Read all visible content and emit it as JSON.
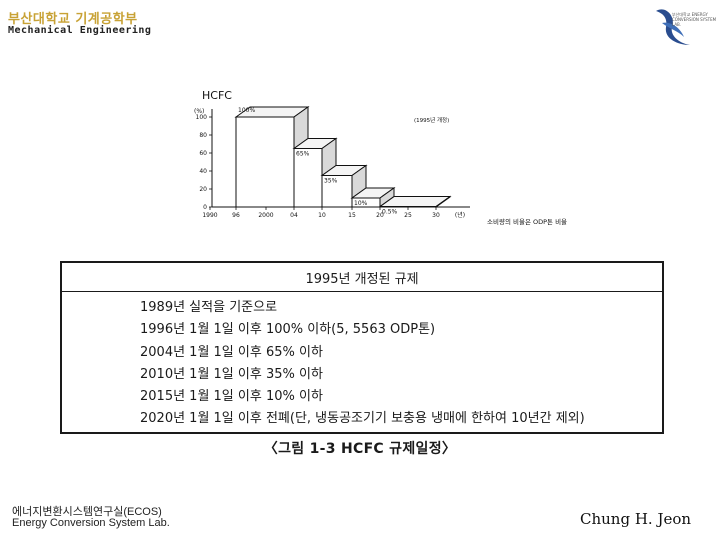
{
  "header": {
    "title_kr": "부산대학교 기계공학부",
    "title_en": "Mechanical Engineering"
  },
  "logo": {
    "icon": "university-logo-icon",
    "text": "부산대학교 ENERGY CONVERSION SYSTEM LAB."
  },
  "chart_data": {
    "type": "step-area",
    "title": "HCFC",
    "y_unit": "(%)",
    "y_ticks": [
      "100",
      "80",
      "60",
      "40",
      "20",
      "0"
    ],
    "x_ticks": [
      "1990",
      "96",
      "2000",
      "04",
      "10",
      "15",
      "20",
      "25",
      "30",
      "(년)"
    ],
    "ylim": [
      0,
      120
    ],
    "steps": [
      {
        "from": 1996,
        "to": 2004,
        "value": 100,
        "label": "100%"
      },
      {
        "from": 2004,
        "to": 2010,
        "value": 65,
        "label": "65%"
      },
      {
        "from": 2010,
        "to": 2015,
        "value": 35,
        "label": "35%"
      },
      {
        "from": 2015,
        "to": 2020,
        "value": 10,
        "label": "10%"
      },
      {
        "from": 2020,
        "to": 2030,
        "value": 0.5,
        "label": "0.5%"
      }
    ],
    "annotation_top": "(1995년 개정)",
    "annotation_bottom": "소비량의 비율은 ODP톤 비율"
  },
  "table": {
    "header": "1995년 개정된 규제",
    "rows": [
      "1989년 실적을 기준으로",
      "1996년 1월 1일 이후 100% 이하(5, 5563 ODP톤)",
      "2004년 1월 1일 이후 65% 이하",
      "2010년 1월 1일 이후 35% 이하",
      "2015년 1월 1일 이후 10% 이하",
      "2020년 1월 1일 이후 전폐(단, 냉동공조기기 보충용 냉매에 한하여 10년간 제외)"
    ]
  },
  "caption": "〈그림 1-3 HCFC 규제일정〉",
  "footer": {
    "lab_kr": "에너지변환시스템연구실(ECOS)",
    "lab_en": "Energy Conversion System Lab.",
    "author": "Chung H. Jeon"
  }
}
